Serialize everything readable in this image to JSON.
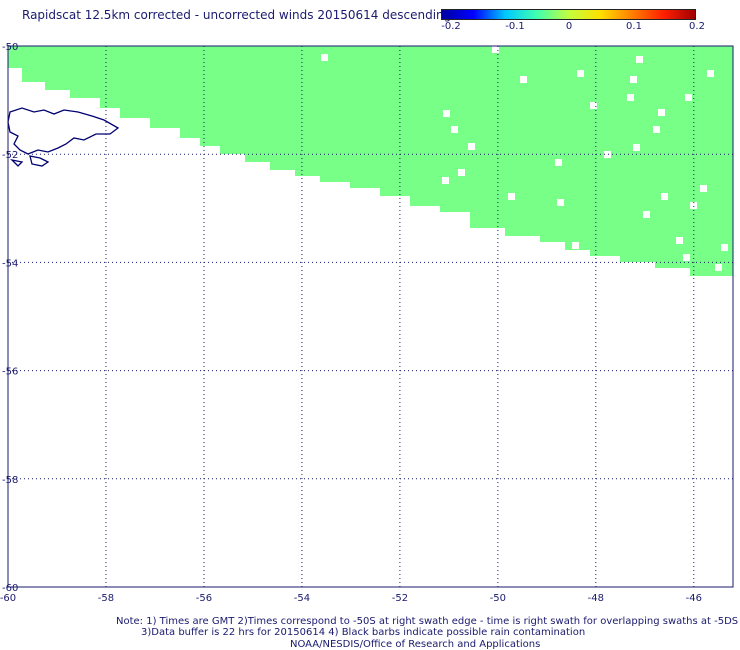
{
  "title": "Rapidscat 12.5km corrected - uncorrected winds 20150614 descending",
  "colorbar": {
    "labels": [
      "-0.2",
      "-0.1",
      "0",
      "0.1",
      "0.2"
    ],
    "colors": [
      "#0000a0",
      "#0000ff",
      "#00c8ff",
      "#40ffb0",
      "#c0ff40",
      "#ffe000",
      "#ff8000",
      "#ff2000",
      "#a00000"
    ]
  },
  "map": {
    "lon_range": [
      -60,
      -45.2
    ],
    "lat_range": [
      -50,
      -60
    ],
    "lon_ticks": [
      "-60",
      "-58",
      "-56",
      "-54",
      "-52",
      "-50",
      "-48",
      "-46"
    ],
    "lat_ticks": [
      "-50",
      "-52",
      "-54",
      "-56",
      "-58",
      "-60"
    ],
    "swath_color": "#77ff88",
    "coast_color": "#000070",
    "grid_color": "#1a1a6e"
  },
  "notes": [
    "Note: 1) Times are GMT 2)Times correspond to -50S at right swath edge - time is right swath for overlapping swaths at -5DS",
    "3)Data buffer is 22 hrs for 20150614 4) Black barbs indicate possible rain contamination",
    "NOAA/NESDIS/Office of Research and Applications"
  ]
}
